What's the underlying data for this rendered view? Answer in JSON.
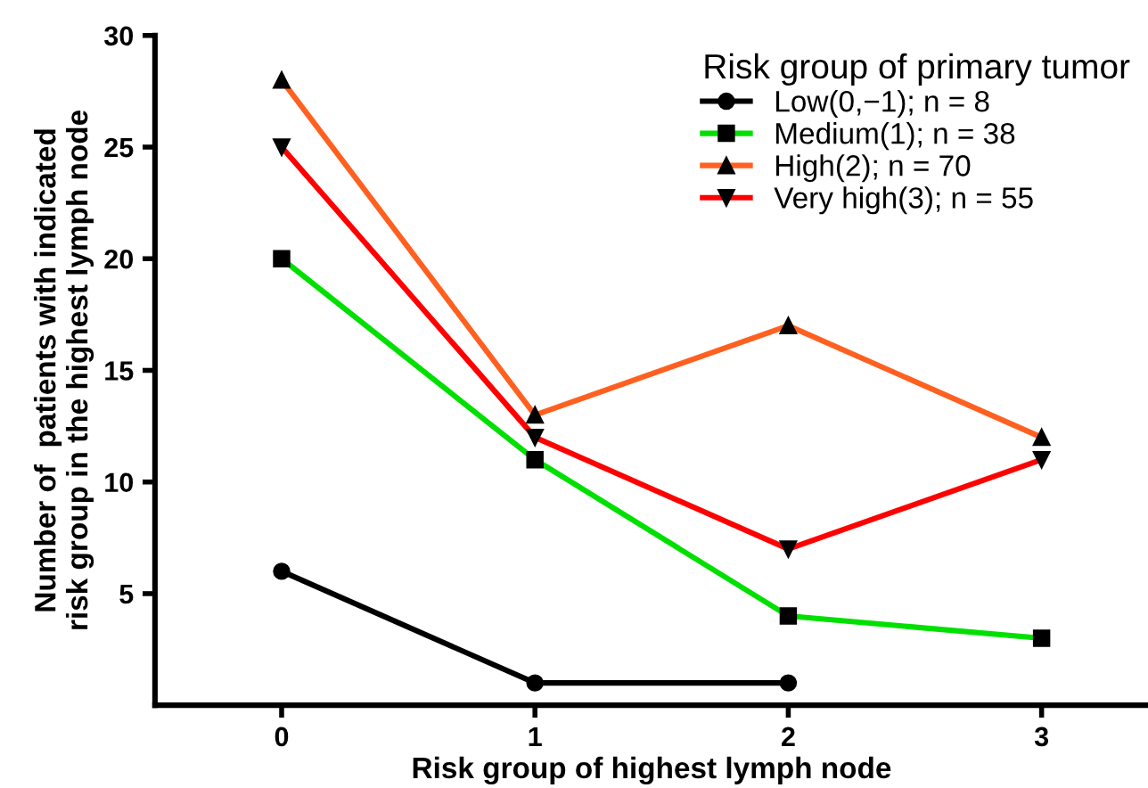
{
  "chart_data": {
    "type": "line",
    "xlabel": "Risk group of highest lymph node",
    "ylabel": "Number of  patients with indicated\nrisk group in the highest lymph node",
    "legend_title": "Risk group of primary tumor",
    "xlim": [
      -0.5,
      3.42
    ],
    "xticks": [
      0,
      1,
      2,
      3
    ],
    "ylim": [
      0,
      30
    ],
    "yticks": [
      5,
      10,
      15,
      20,
      25,
      30
    ],
    "grid": false,
    "legend": "top right",
    "line_style": "solid",
    "series": [
      {
        "name": "Low(0,−1); n = 8",
        "color": "#000000",
        "marker": "circle",
        "x": [
          0,
          1,
          2
        ],
        "values": [
          6,
          1,
          1
        ]
      },
      {
        "name": "Medium(1); n = 38",
        "color": "#00e000",
        "marker": "square",
        "x": [
          0,
          1,
          2,
          3
        ],
        "values": [
          20,
          11,
          4,
          3
        ]
      },
      {
        "name": "High(2); n = 70",
        "color": "#ff6020",
        "marker": "triangle",
        "x": [
          0,
          1,
          2,
          3
        ],
        "values": [
          28,
          13,
          17,
          12
        ]
      },
      {
        "name": "Very high(3); n = 55",
        "color": "#ff0000",
        "marker": "triangle_down",
        "x": [
          0,
          1,
          2,
          3
        ],
        "values": [
          25,
          12,
          7,
          11
        ]
      }
    ]
  }
}
